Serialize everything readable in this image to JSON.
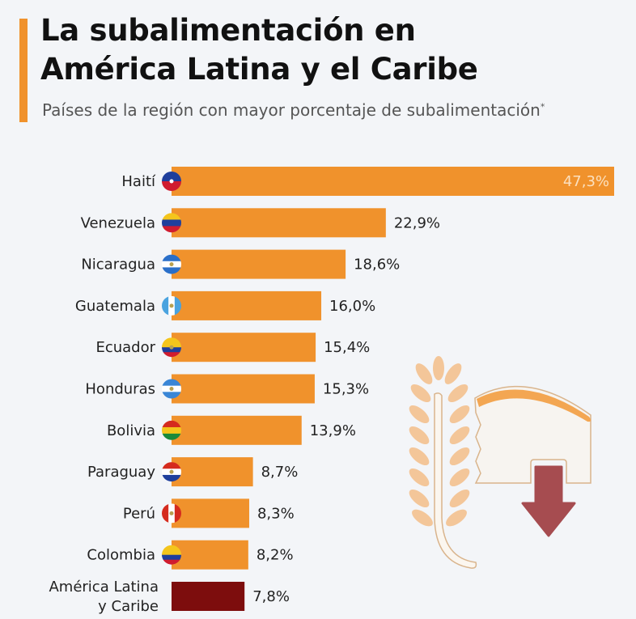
{
  "header": {
    "title_line1": "La subalimentación en",
    "title_line2": "América Latina y el Caribe",
    "subtitle": "Países de la región con mayor porcentaje de subalimentación",
    "subtitle_mark": "*"
  },
  "colors": {
    "accent": "#f0922c",
    "bar": "#f0922c",
    "highlight_bar": "#7d0d0d",
    "arrow": "#a64c50",
    "wheat": "#f3c699"
  },
  "chart_data": {
    "type": "bar",
    "orientation": "horizontal",
    "title": "La subalimentación en América Latina y el Caribe",
    "subtitle": "Países de la región con mayor porcentaje de subalimentación*",
    "unit": "%",
    "categories": [
      "Haití",
      "Venezuela",
      "Nicaragua",
      "Guatemala",
      "Ecuador",
      "Honduras",
      "Bolivia",
      "Paraguay",
      "Perú",
      "Colombia",
      "América Latina y Caribe"
    ],
    "category_lines": [
      [
        "Haití"
      ],
      [
        "Venezuela"
      ],
      [
        "Nicaragua"
      ],
      [
        "Guatemala"
      ],
      [
        "Ecuador"
      ],
      [
        "Honduras"
      ],
      [
        "Bolivia"
      ],
      [
        "Paraguay"
      ],
      [
        "Perú"
      ],
      [
        "Colombia"
      ],
      [
        "América Latina",
        "y Caribe"
      ]
    ],
    "values": [
      47.3,
      22.9,
      18.6,
      16.0,
      15.4,
      15.3,
      13.9,
      8.7,
      8.3,
      8.2,
      7.8
    ],
    "value_labels": [
      "47,3%",
      "22,9%",
      "18,6%",
      "16,0%",
      "15,4%",
      "15,3%",
      "13,9%",
      "8,7%",
      "8,3%",
      "8,2%",
      "7,8%"
    ],
    "flags": [
      "haiti-flag",
      "venezuela-flag",
      "nicaragua-flag",
      "guatemala-flag",
      "ecuador-flag",
      "honduras-flag",
      "bolivia-flag",
      "paraguay-flag",
      "peru-flag",
      "colombia-flag",
      null
    ],
    "highlight": "América Latina y Caribe",
    "xlim": [
      0,
      47.3
    ],
    "grid": false,
    "legend": "none"
  },
  "illustration": "wheat-bread-down-arrow-icon"
}
